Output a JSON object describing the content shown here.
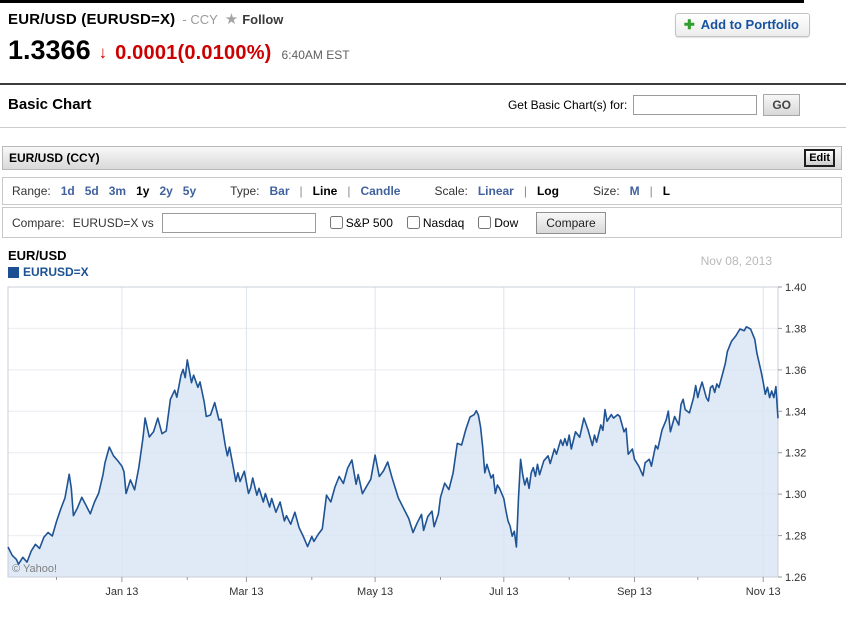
{
  "quote": {
    "title": "EUR/USD (EURUSD=X)",
    "exchange": "- CCY",
    "follow_label": "Follow",
    "price": "1.3366",
    "change_arrow": "↓",
    "change": "0.0001",
    "change_pct": "(0.0100%)",
    "time": "6:40AM EST",
    "add_portfolio_label": "Add to Portfolio",
    "plus_icon": "✚",
    "star_icon": "★",
    "accent_red": "#cc0000",
    "link_blue": "#17529e"
  },
  "basic_chart_bar": {
    "heading": "Basic Chart",
    "get_chart_label": "Get Basic Chart(s) for:",
    "input_value": "",
    "go_label": "GO"
  },
  "module": {
    "title": "EUR/USD (CCY)",
    "edit_label": "Edit"
  },
  "toolbar": {
    "range_label": "Range:",
    "range_options": [
      {
        "label": "1d",
        "selected": false
      },
      {
        "label": "5d",
        "selected": false
      },
      {
        "label": "3m",
        "selected": false
      },
      {
        "label": "1y",
        "selected": true
      },
      {
        "label": "2y",
        "selected": false
      },
      {
        "label": "5y",
        "selected": false
      }
    ],
    "type_label": "Type:",
    "type_options": [
      {
        "label": "Bar",
        "selected": false
      },
      {
        "label": "Line",
        "selected": true
      },
      {
        "label": "Candle",
        "selected": false
      }
    ],
    "scale_label": "Scale:",
    "scale_options": [
      {
        "label": "Linear",
        "selected": false
      },
      {
        "label": "Log",
        "selected": true
      }
    ],
    "size_label": "Size:",
    "size_options": [
      {
        "label": "M",
        "selected": false
      },
      {
        "label": "L",
        "selected": true
      }
    ],
    "separator": "|"
  },
  "compare": {
    "label": "Compare:",
    "symbol_vs": "EURUSD=X vs",
    "input_value": "",
    "options": [
      {
        "label": "S&P 500"
      },
      {
        "label": "Nasdaq"
      },
      {
        "label": "Dow"
      }
    ],
    "button_label": "Compare"
  },
  "chart": {
    "title": "EUR/USD",
    "legend": "EURUSD=X",
    "date_label": "Nov 08, 2013",
    "watermark": "© Yahoo!",
    "line_color": "#1f5394",
    "fill_color": "#d7e5f4",
    "v_grid_color": "#dce3ee",
    "h_grid_color": "#e9ebf1",
    "border_color": "#c8cfd9",
    "tick_color": "#999999"
  },
  "chart_data": {
    "type": "area",
    "title": "EUR/USD (EURUSD=X) — 1 year daily",
    "xlabel": "",
    "ylabel": "",
    "x_unit": "days since Nov 08, 2012",
    "x_range": [
      0,
      365
    ],
    "ylim": [
      1.26,
      1.4
    ],
    "y_ticks": [
      1.4,
      1.38,
      1.36,
      1.34,
      1.32,
      1.3,
      1.28,
      1.26
    ],
    "x_ticks": [
      {
        "day": 54,
        "label": "Jan 13"
      },
      {
        "day": 113,
        "label": "Mar 13"
      },
      {
        "day": 174,
        "label": "May 13"
      },
      {
        "day": 235,
        "label": "Jul 13"
      },
      {
        "day": 297,
        "label": "Sep 13"
      },
      {
        "day": 358,
        "label": "Nov 13"
      }
    ],
    "minor_x_tick_days": [
      23,
      85,
      144,
      205,
      266,
      327
    ],
    "grid": true,
    "legend_position": "top-left",
    "series": [
      {
        "name": "EURUSD=X",
        "points": [
          [
            0,
            1.2745
          ],
          [
            2,
            1.2705
          ],
          [
            4,
            1.2685
          ],
          [
            5,
            1.2662
          ],
          [
            7,
            1.2695
          ],
          [
            9,
            1.2672
          ],
          [
            11,
            1.2725
          ],
          [
            13,
            1.2758
          ],
          [
            15,
            1.2738
          ],
          [
            17,
            1.2792
          ],
          [
            19,
            1.2815
          ],
          [
            21,
            1.2798
          ],
          [
            23,
            1.2868
          ],
          [
            25,
            1.2928
          ],
          [
            27,
            1.2982
          ],
          [
            29,
            1.3096
          ],
          [
            30,
            1.3028
          ],
          [
            31,
            1.2896
          ],
          [
            33,
            1.2935
          ],
          [
            35,
            1.2985
          ],
          [
            37,
            1.2945
          ],
          [
            39,
            1.2905
          ],
          [
            41,
            1.2962
          ],
          [
            43,
            1.3005
          ],
          [
            45,
            1.3092
          ],
          [
            46,
            1.3152
          ],
          [
            48,
            1.3227
          ],
          [
            50,
            1.3185
          ],
          [
            52,
            1.3162
          ],
          [
            54,
            1.3135
          ],
          [
            55,
            1.3108
          ],
          [
            56,
            1.3003
          ],
          [
            58,
            1.3069
          ],
          [
            60,
            1.3021
          ],
          [
            62,
            1.3128
          ],
          [
            64,
            1.3272
          ],
          [
            65,
            1.3367
          ],
          [
            67,
            1.3276
          ],
          [
            69,
            1.3302
          ],
          [
            71,
            1.3367
          ],
          [
            73,
            1.3292
          ],
          [
            75,
            1.3305
          ],
          [
            77,
            1.3458
          ],
          [
            79,
            1.3502
          ],
          [
            80,
            1.3468
          ],
          [
            82,
            1.3574
          ],
          [
            83,
            1.3602
          ],
          [
            84,
            1.3562
          ],
          [
            85,
            1.3648
          ],
          [
            87,
            1.3538
          ],
          [
            88,
            1.3574
          ],
          [
            90,
            1.3516
          ],
          [
            91,
            1.3542
          ],
          [
            93,
            1.3445
          ],
          [
            94,
            1.3375
          ],
          [
            96,
            1.3382
          ],
          [
            98,
            1.3442
          ],
          [
            100,
            1.3358
          ],
          [
            101,
            1.3362
          ],
          [
            103,
            1.3235
          ],
          [
            104,
            1.3185
          ],
          [
            105,
            1.3227
          ],
          [
            107,
            1.3119
          ],
          [
            108,
            1.3061
          ],
          [
            109,
            1.3103
          ],
          [
            110,
            1.3061
          ],
          [
            112,
            1.3111
          ],
          [
            114,
            1.3003
          ],
          [
            115,
            1.3028
          ],
          [
            116,
            1.3078
          ],
          [
            118,
            1.2995
          ],
          [
            119,
            1.3028
          ],
          [
            121,
            1.2962
          ],
          [
            122,
            1.3003
          ],
          [
            124,
            1.2938
          ],
          [
            125,
            1.2979
          ],
          [
            127,
            1.2913
          ],
          [
            129,
            1.2962
          ],
          [
            131,
            1.2871
          ],
          [
            132,
            1.2896
          ],
          [
            134,
            1.2855
          ],
          [
            136,
            1.2913
          ],
          [
            138,
            1.2838
          ],
          [
            140,
            1.2796
          ],
          [
            142,
            1.2747
          ],
          [
            144,
            1.2796
          ],
          [
            145,
            1.2772
          ],
          [
            147,
            1.2805
          ],
          [
            149,
            1.2832
          ],
          [
            151,
            1.2995
          ],
          [
            153,
            1.2962
          ],
          [
            155,
            1.3035
          ],
          [
            157,
            1.3085
          ],
          [
            159,
            1.3052
          ],
          [
            161,
            1.3125
          ],
          [
            163,
            1.3165
          ],
          [
            165,
            1.3048
          ],
          [
            166,
            1.3095
          ],
          [
            168,
            1.3002
          ],
          [
            170,
            1.3038
          ],
          [
            172,
            1.3072
          ],
          [
            174,
            1.3188
          ],
          [
            176,
            1.3085
          ],
          [
            178,
            1.3112
          ],
          [
            180,
            1.3155
          ],
          [
            182,
            1.3082
          ],
          [
            185,
            1.2982
          ],
          [
            187,
            1.2942
          ],
          [
            190,
            1.2882
          ],
          [
            192,
            1.2815
          ],
          [
            194,
            1.2862
          ],
          [
            196,
            1.2902
          ],
          [
            197,
            1.2825
          ],
          [
            199,
            1.2892
          ],
          [
            201,
            1.2918
          ],
          [
            202,
            1.2843
          ],
          [
            204,
            1.2905
          ],
          [
            205,
            1.2985
          ],
          [
            207,
            1.3053
          ],
          [
            209,
            1.3022
          ],
          [
            211,
            1.3102
          ],
          [
            213,
            1.3245
          ],
          [
            215,
            1.3237
          ],
          [
            217,
            1.3312
          ],
          [
            219,
            1.3372
          ],
          [
            221,
            1.3384
          ],
          [
            222,
            1.3403
          ],
          [
            223,
            1.3381
          ],
          [
            224,
            1.3326
          ],
          [
            225,
            1.3227
          ],
          [
            226,
            1.3103
          ],
          [
            227,
            1.3144
          ],
          [
            229,
            1.3078
          ],
          [
            230,
            1.3094
          ],
          [
            231,
            1.3003
          ],
          [
            232,
            1.3044
          ],
          [
            233,
            1.3028
          ],
          [
            235,
            1.2979
          ],
          [
            236,
            1.2921
          ],
          [
            237,
            1.2871
          ],
          [
            238,
            1.2846
          ],
          [
            239,
            1.2797
          ],
          [
            240,
            1.2821
          ],
          [
            241,
            1.2745
          ],
          [
            242,
            1.2982
          ],
          [
            243,
            1.3168
          ],
          [
            244,
            1.3094
          ],
          [
            245,
            1.3044
          ],
          [
            246,
            1.3078
          ],
          [
            247,
            1.3028
          ],
          [
            248,
            1.3103
          ],
          [
            249,
            1.3128
          ],
          [
            250,
            1.3086
          ],
          [
            251,
            1.3144
          ],
          [
            252,
            1.3094
          ],
          [
            254,
            1.3161
          ],
          [
            256,
            1.3185
          ],
          [
            257,
            1.3148
          ],
          [
            259,
            1.3218
          ],
          [
            260,
            1.3193
          ],
          [
            262,
            1.3262
          ],
          [
            263,
            1.3235
          ],
          [
            264,
            1.3268
          ],
          [
            265,
            1.3235
          ],
          [
            266,
            1.3285
          ],
          [
            267,
            1.3218
          ],
          [
            269,
            1.3301
          ],
          [
            271,
            1.3275
          ],
          [
            273,
            1.3367
          ],
          [
            274,
            1.3338
          ],
          [
            275,
            1.3309
          ],
          [
            277,
            1.3235
          ],
          [
            278,
            1.3285
          ],
          [
            279,
            1.3251
          ],
          [
            281,
            1.3334
          ],
          [
            282,
            1.3308
          ],
          [
            283,
            1.3408
          ],
          [
            284,
            1.3352
          ],
          [
            286,
            1.3384
          ],
          [
            287,
            1.3367
          ],
          [
            289,
            1.3384
          ],
          [
            290,
            1.3375
          ],
          [
            292,
            1.3301
          ],
          [
            293,
            1.3318
          ],
          [
            294,
            1.3193
          ],
          [
            296,
            1.3218
          ],
          [
            297,
            1.3168
          ],
          [
            299,
            1.3135
          ],
          [
            301,
            1.3089
          ],
          [
            302,
            1.3152
          ],
          [
            304,
            1.3168
          ],
          [
            305,
            1.3135
          ],
          [
            307,
            1.3235
          ],
          [
            308,
            1.3218
          ],
          [
            310,
            1.3309
          ],
          [
            312,
            1.3359
          ],
          [
            313,
            1.3401
          ],
          [
            314,
            1.3301
          ],
          [
            316,
            1.3375
          ],
          [
            318,
            1.3334
          ],
          [
            319,
            1.3433
          ],
          [
            320,
            1.3458
          ],
          [
            321,
            1.3408
          ],
          [
            323,
            1.3392
          ],
          [
            325,
            1.3466
          ],
          [
            326,
            1.3524
          ],
          [
            327,
            1.3466
          ],
          [
            328,
            1.3507
          ],
          [
            329,
            1.3541
          ],
          [
            331,
            1.3466
          ],
          [
            332,
            1.3449
          ],
          [
            333,
            1.3515
          ],
          [
            334,
            1.3524
          ],
          [
            335,
            1.3491
          ],
          [
            336,
            1.3532
          ],
          [
            337,
            1.3515
          ],
          [
            339,
            1.3592
          ],
          [
            340,
            1.3631
          ],
          [
            341,
            1.3689
          ],
          [
            342,
            1.3714
          ],
          [
            343,
            1.3739
          ],
          [
            345,
            1.3764
          ],
          [
            346,
            1.3781
          ],
          [
            347,
            1.3797
          ],
          [
            349,
            1.3789
          ],
          [
            350,
            1.3808
          ],
          [
            352,
            1.3797
          ],
          [
            353,
            1.3772
          ],
          [
            354,
            1.3747
          ],
          [
            355,
            1.3681
          ],
          [
            357,
            1.3592
          ],
          [
            358,
            1.3541
          ],
          [
            359,
            1.3482
          ],
          [
            360,
            1.3516
          ],
          [
            361,
            1.3466
          ],
          [
            362,
            1.3498
          ],
          [
            363,
            1.3466
          ],
          [
            364,
            1.3519
          ],
          [
            365,
            1.3366
          ]
        ]
      }
    ]
  }
}
